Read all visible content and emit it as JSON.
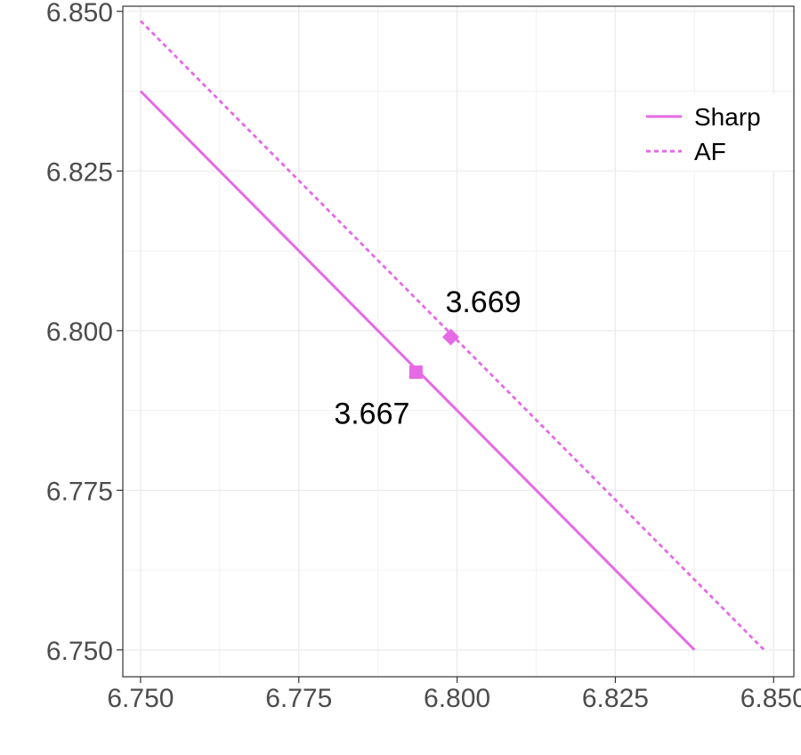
{
  "chart_data": {
    "type": "line",
    "title": "",
    "xlabel": "",
    "ylabel": "",
    "xlim": [
      6.7472,
      6.8532
    ],
    "ylim": [
      6.7458,
      6.8508
    ],
    "x_ticks": [
      "6.750",
      "6.775",
      "6.800",
      "6.825",
      "6.850"
    ],
    "y_ticks": [
      "6.750",
      "6.775",
      "6.800",
      "6.825",
      "6.850"
    ],
    "grid": true,
    "legend_position": "top-right",
    "color": "#e66ae6",
    "series": [
      {
        "name": "Sharp",
        "style": "solid",
        "x": [
          6.75,
          6.8375
        ],
        "y": [
          6.8375,
          6.75
        ],
        "marker": {
          "shape": "square",
          "x": 6.7935,
          "y": 6.7935,
          "label": "3.667"
        }
      },
      {
        "name": "AF",
        "style": "dashed",
        "x": [
          6.75,
          6.8485
        ],
        "y": [
          6.8485,
          6.75
        ],
        "marker": {
          "shape": "diamond",
          "x": 6.799,
          "y": 6.799,
          "label": "3.669"
        }
      }
    ]
  }
}
